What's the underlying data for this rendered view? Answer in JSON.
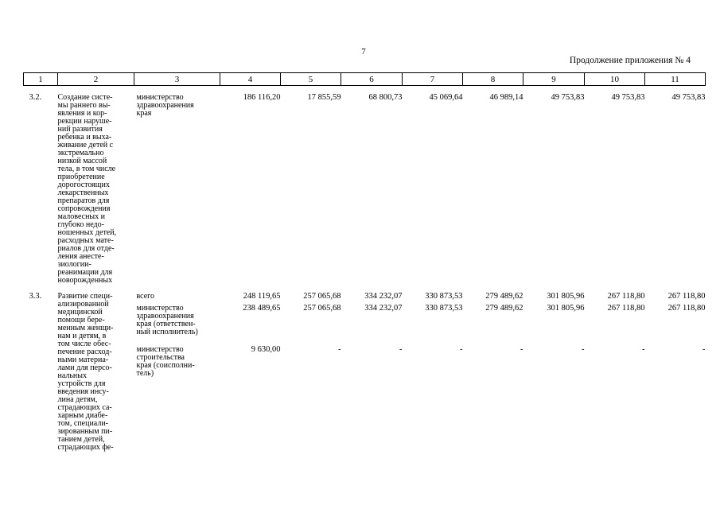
{
  "page_number": "7",
  "continuation": "Продолжение приложения № 4",
  "header": [
    "1",
    "2",
    "3",
    "4",
    "5",
    "6",
    "7",
    "8",
    "9",
    "10",
    "11"
  ],
  "rows": [
    {
      "code": "3.2.",
      "name": "Создание систе-\nмы раннего вы-\nявления и кор-\nрекции наруше-\nний развития\nребенка и выха-\nживание детей с\nэкстремально\nнизкой массой\nтела, в том числе\nприобретение\nдорогостоящих\nлекарственных\nпрепаратов для\nсопровождения\nмаловесных и\nглубоко недо-\nношенных детей,\nрасходных мате-\nриалов для отде-\nления анесте-\nзиологии-\nреанимации для\nноворожденных",
      "executors": [
        {
          "label": "министерство\nздравоохранения\nкрая",
          "values": [
            "186 116,20",
            "17 855,59",
            "68 800,73",
            "45 069,64",
            "46 989,14",
            "49 753,83",
            "49 753,83",
            "49 753,83"
          ]
        }
      ]
    },
    {
      "code": "3.3.",
      "name": "Развитие специ-\nализированной\nмедицинской\nпомощи бере-\nменным женщи-\nнам и детям, в\nтом числе обес-\nпечение расход-\nными материа-\nлами для персо-\nнальных\nустройств для\nвведения инсу-\nлина детям,\nстрадающих са-\nхарным диабе-\nтом, специали-\nзированным пи-\nтанием детей,\nстрадающих фе-",
      "executors": [
        {
          "label": "всего",
          "values": [
            "248 119,65",
            "257 065,68",
            "334 232,07",
            "330 873,53",
            "279 489,62",
            "301 805,96",
            "267 118,80",
            "267 118,80"
          ]
        },
        {
          "label": "министерство\nздравоохранения\nкрая (ответствен-\nный исполнитель)",
          "values": [
            "238 489,65",
            "257 065,68",
            "334 232,07",
            "330 873,53",
            "279 489,62",
            "301 805,96",
            "267 118,80",
            "267 118,80"
          ]
        },
        {
          "label": "министерство\nстроительства\nкрая (соисполни-\nтель)",
          "values": [
            "9 630,00",
            "-",
            "-",
            "-",
            "-",
            "-",
            "-",
            "-"
          ]
        }
      ]
    }
  ]
}
